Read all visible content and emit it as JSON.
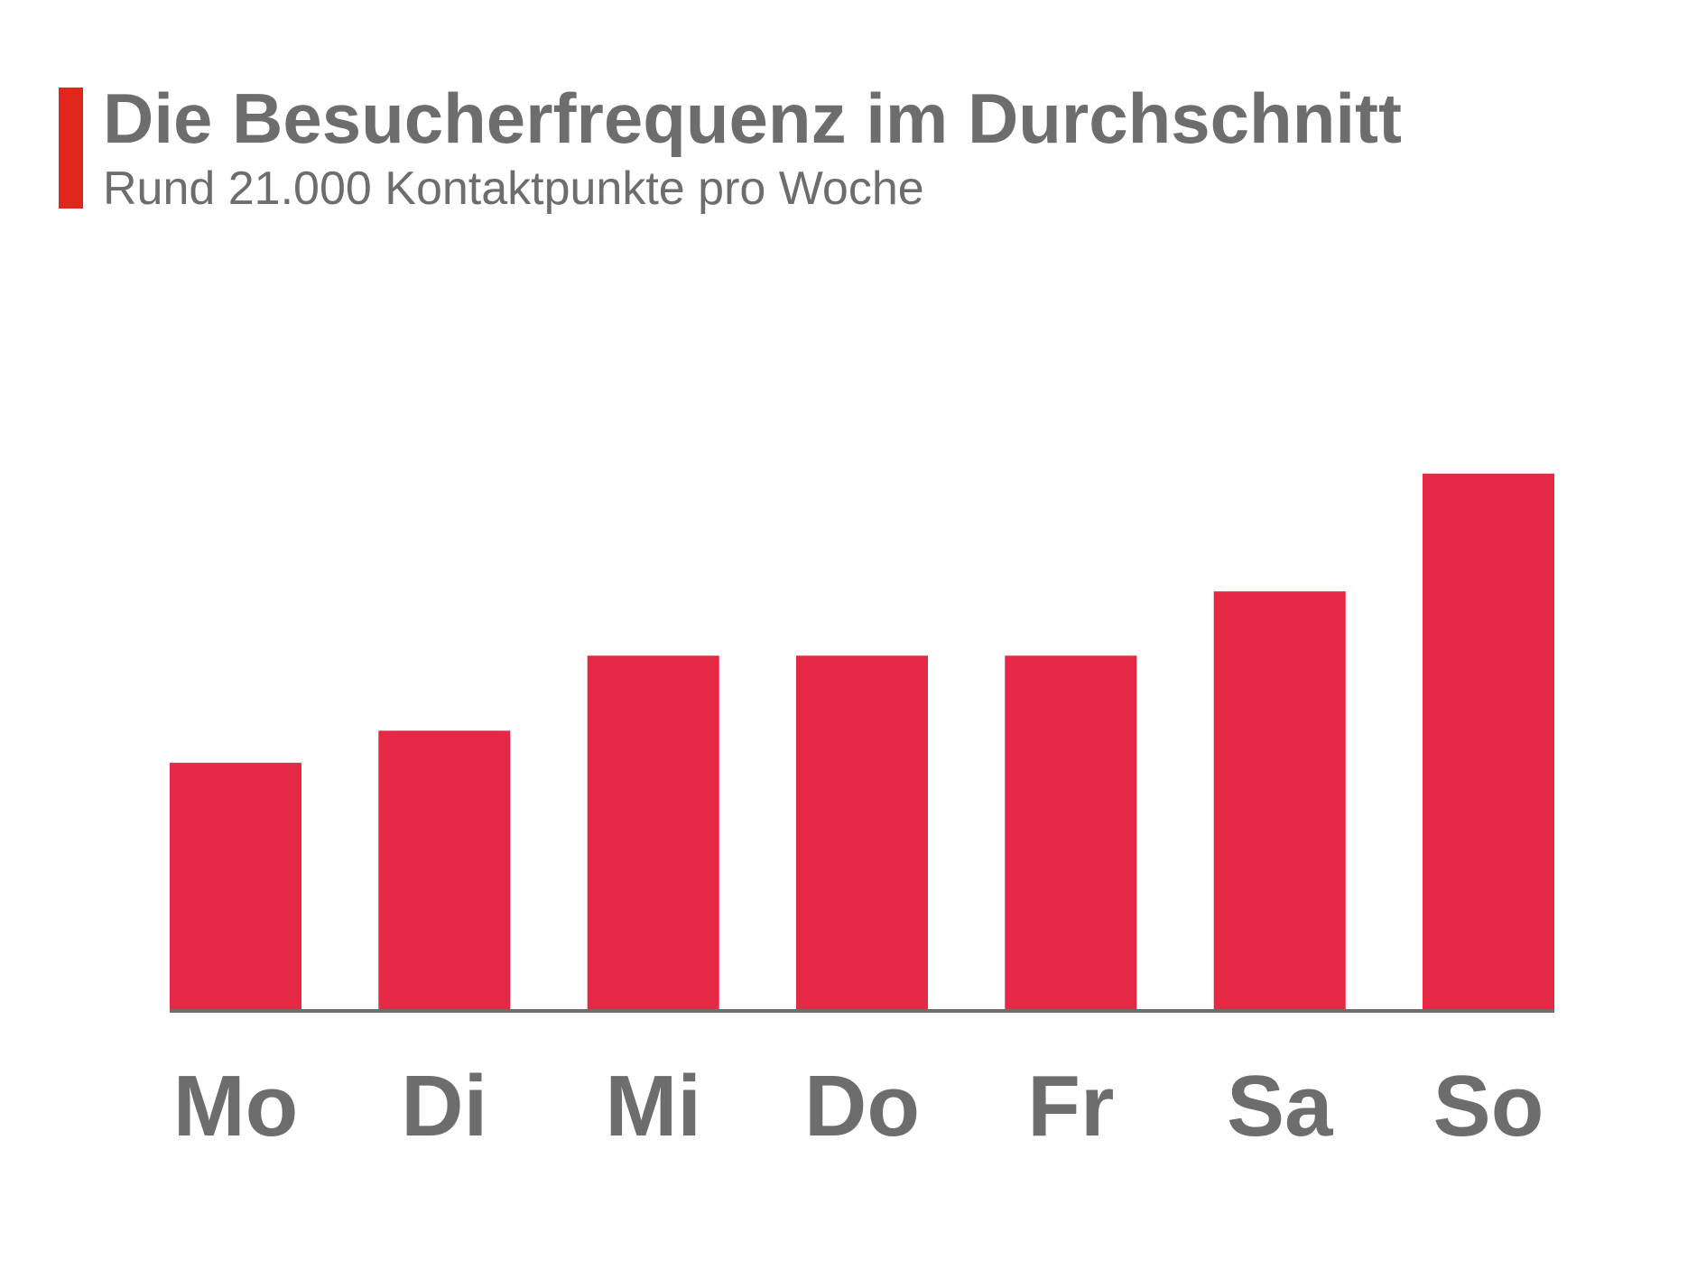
{
  "header": {
    "title": "Die Besucherfrequenz im Durchschnitt",
    "subtitle": "Rund 21.000 Kontaktpunkte pro Woche"
  },
  "colors": {
    "accent": "#e1261c",
    "bar": "#e52843",
    "text": "#6d6d6d",
    "axis": "#6d6d6d"
  },
  "chart_data": {
    "type": "bar",
    "categories": [
      "Mo",
      "Di",
      "Mi",
      "Do",
      "Fr",
      "Sa",
      "So"
    ],
    "values": [
      2.3,
      2.6,
      3.3,
      3.3,
      3.3,
      3.9,
      5.0
    ],
    "title": "",
    "xlabel": "",
    "ylabel": "",
    "ylim": [
      0,
      6
    ],
    "grid": false,
    "legend": "none"
  }
}
